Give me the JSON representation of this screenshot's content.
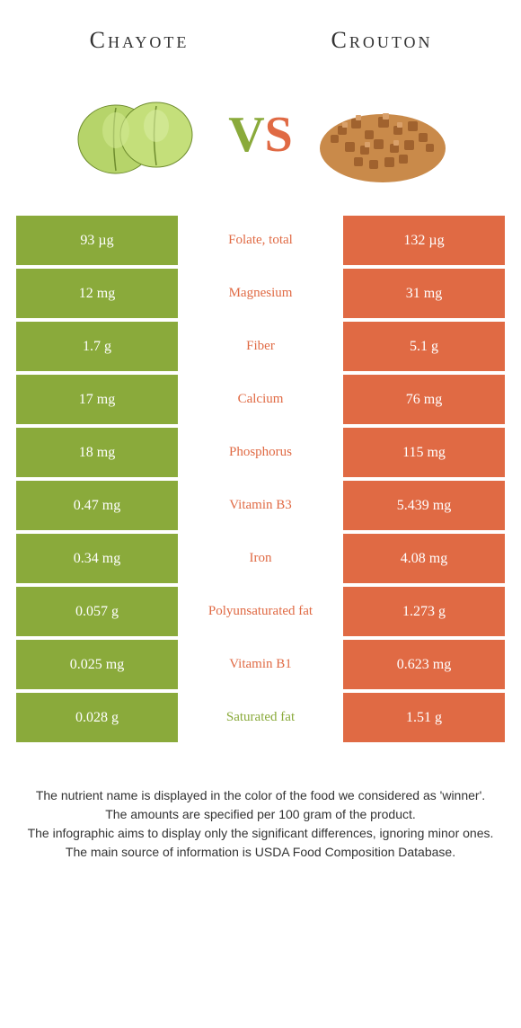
{
  "header": {
    "left": "Chayote",
    "right": "Crouton"
  },
  "vs": {
    "v": "V",
    "s": "S"
  },
  "colors": {
    "left": "#8aaa3b",
    "right": "#e06a44",
    "left_light": "#b6d46a",
    "left_dark": "#6e8c2e",
    "right_light": "#d9a06a",
    "right_dark": "#a0622e"
  },
  "rows": [
    {
      "left": "93 µg",
      "label": "Folate, total",
      "right": "132 µg",
      "winner": "right"
    },
    {
      "left": "12 mg",
      "label": "Magnesium",
      "right": "31 mg",
      "winner": "right"
    },
    {
      "left": "1.7 g",
      "label": "Fiber",
      "right": "5.1 g",
      "winner": "right"
    },
    {
      "left": "17 mg",
      "label": "Calcium",
      "right": "76 mg",
      "winner": "right"
    },
    {
      "left": "18 mg",
      "label": "Phosphorus",
      "right": "115 mg",
      "winner": "right"
    },
    {
      "left": "0.47 mg",
      "label": "Vitamin B3",
      "right": "5.439 mg",
      "winner": "right"
    },
    {
      "left": "0.34 mg",
      "label": "Iron",
      "right": "4.08 mg",
      "winner": "right"
    },
    {
      "left": "0.057 g",
      "label": "Polyunsaturated fat",
      "right": "1.273 g",
      "winner": "right"
    },
    {
      "left": "0.025 mg",
      "label": "Vitamin B1",
      "right": "0.623 mg",
      "winner": "right"
    },
    {
      "left": "0.028 g",
      "label": "Saturated fat",
      "right": "1.51 g",
      "winner": "left"
    }
  ],
  "footer": {
    "line1": "The nutrient name is displayed in the color of the food we considered as 'winner'.",
    "line2": "The amounts are specified per 100 gram of the product.",
    "line3": "The infographic aims to display only the significant differences, ignoring minor ones.",
    "line4": "The main source of information is USDA Food Composition Database."
  }
}
